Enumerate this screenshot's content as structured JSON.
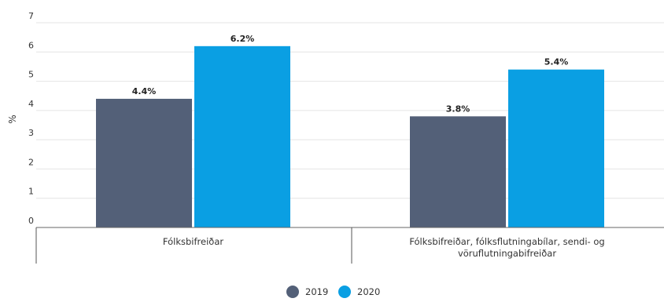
{
  "chart_data": {
    "type": "bar",
    "ylabel": "%",
    "ylim": [
      0,
      7
    ],
    "yticks": [
      0,
      1,
      2,
      3,
      4,
      5,
      6,
      7
    ],
    "grid": true,
    "legend_position": "bottom",
    "categories": [
      [
        "Fólksbifreiðar"
      ],
      [
        "Fólksbifreiðar, fólksflutningabílar, sendi- og",
        "vöruflutningabifreiðar"
      ]
    ],
    "series": [
      {
        "name": "2019",
        "color": "#536078",
        "values": [
          4.4,
          3.8
        ],
        "labels": [
          "4.4%",
          "3.8%"
        ]
      },
      {
        "name": "2020",
        "color": "#0a9fe3",
        "values": [
          6.2,
          5.4
        ],
        "labels": [
          "6.2%",
          "5.4%"
        ]
      }
    ]
  }
}
